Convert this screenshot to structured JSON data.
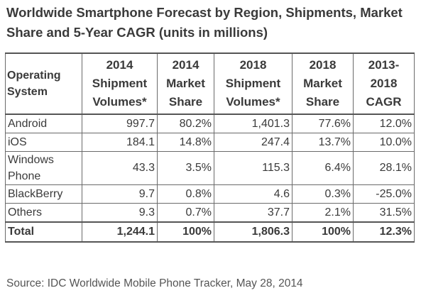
{
  "title_line1": "Worldwide Smartphone Forecast by Region, Shipments, Market",
  "title_line2": "Share and 5-Year CAGR (units in millions)",
  "headers": [
    [
      "Operating",
      "System"
    ],
    [
      "2014",
      "Shipment",
      "Volumes*"
    ],
    [
      "2014",
      "Market",
      "Share"
    ],
    [
      "2018",
      "Shipment",
      "Volumes*"
    ],
    [
      "2018",
      "Market",
      "Share"
    ],
    [
      "2013-",
      "2018",
      "CAGR"
    ]
  ],
  "rows": [
    {
      "os": [
        "Android"
      ],
      "v2014": "997.7",
      "s2014": "80.2%",
      "v2018": "1,401.3",
      "s2018": "77.6%",
      "cagr": "12.0%"
    },
    {
      "os": [
        "iOS"
      ],
      "v2014": "184.1",
      "s2014": "14.8%",
      "v2018": "247.4",
      "s2018": "13.7%",
      "cagr": "10.0%"
    },
    {
      "os": [
        "Windows",
        "Phone"
      ],
      "v2014": "43.3",
      "s2014": "3.5%",
      "v2018": "115.3",
      "s2018": "6.4%",
      "cagr": "28.1%"
    },
    {
      "os": [
        "BlackBerry"
      ],
      "v2014": "9.7",
      "s2014": "0.8%",
      "v2018": "4.6",
      "s2018": "0.3%",
      "cagr": "-25.0%"
    },
    {
      "os": [
        "Others"
      ],
      "v2014": "9.3",
      "s2014": "0.7%",
      "v2018": "37.7",
      "s2018": "2.1%",
      "cagr": "31.5%"
    }
  ],
  "total": {
    "os": "Total",
    "v2014": "1,244.1",
    "s2014": "100%",
    "v2018": "1,806.3",
    "s2018": "100%",
    "cagr": "12.3%"
  },
  "source": "Source: IDC Worldwide Mobile Phone Tracker, May 28, 2014",
  "chart_data": {
    "type": "table",
    "columns": [
      "Operating System",
      "2014 Shipment Volumes*",
      "2014 Market Share",
      "2018 Shipment Volumes*",
      "2018 Market Share",
      "2013-2018 CAGR"
    ],
    "rows": [
      [
        "Android",
        997.7,
        80.2,
        1401.3,
        77.6,
        12.0
      ],
      [
        "iOS",
        184.1,
        14.8,
        247.4,
        13.7,
        10.0
      ],
      [
        "Windows Phone",
        43.3,
        3.5,
        115.3,
        6.4,
        28.1
      ],
      [
        "BlackBerry",
        9.7,
        0.8,
        4.6,
        0.3,
        -25.0
      ],
      [
        "Others",
        9.3,
        0.7,
        37.7,
        2.1,
        31.5
      ],
      [
        "Total",
        1244.1,
        100,
        1806.3,
        100,
        12.3
      ]
    ]
  }
}
